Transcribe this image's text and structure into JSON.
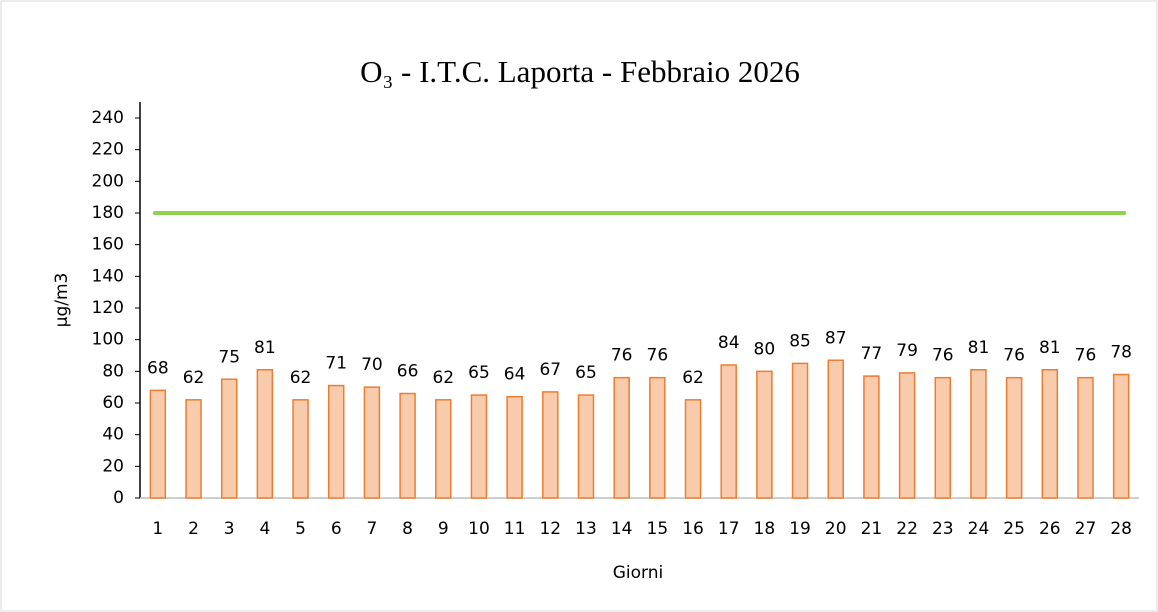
{
  "chart_data": {
    "type": "bar",
    "title": "O₃ - I.T.C. Laporta - Febbraio 2026",
    "x_label": "Giorni",
    "y_label": "µg/m3",
    "categories": [
      "1",
      "2",
      "3",
      "4",
      "5",
      "6",
      "7",
      "8",
      "9",
      "10",
      "11",
      "12",
      "13",
      "14",
      "15",
      "16",
      "17",
      "18",
      "19",
      "20",
      "21",
      "22",
      "23",
      "24",
      "25",
      "26",
      "27",
      "28"
    ],
    "values": [
      68,
      62,
      75,
      81,
      62,
      71,
      70,
      66,
      62,
      65,
      64,
      67,
      65,
      76,
      76,
      62,
      84,
      80,
      85,
      87,
      77,
      79,
      76,
      81,
      76,
      81,
      76,
      78
    ],
    "color": "#f8cbad",
    "edge_color": "#ed7d31",
    "reference_line": {
      "value": 180,
      "color": "#92d050"
    },
    "ylim": [
      0,
      240
    ],
    "yticks": [
      0,
      20,
      40,
      60,
      80,
      100,
      120,
      140,
      160,
      180,
      200,
      220,
      240
    ],
    "grid": false
  }
}
